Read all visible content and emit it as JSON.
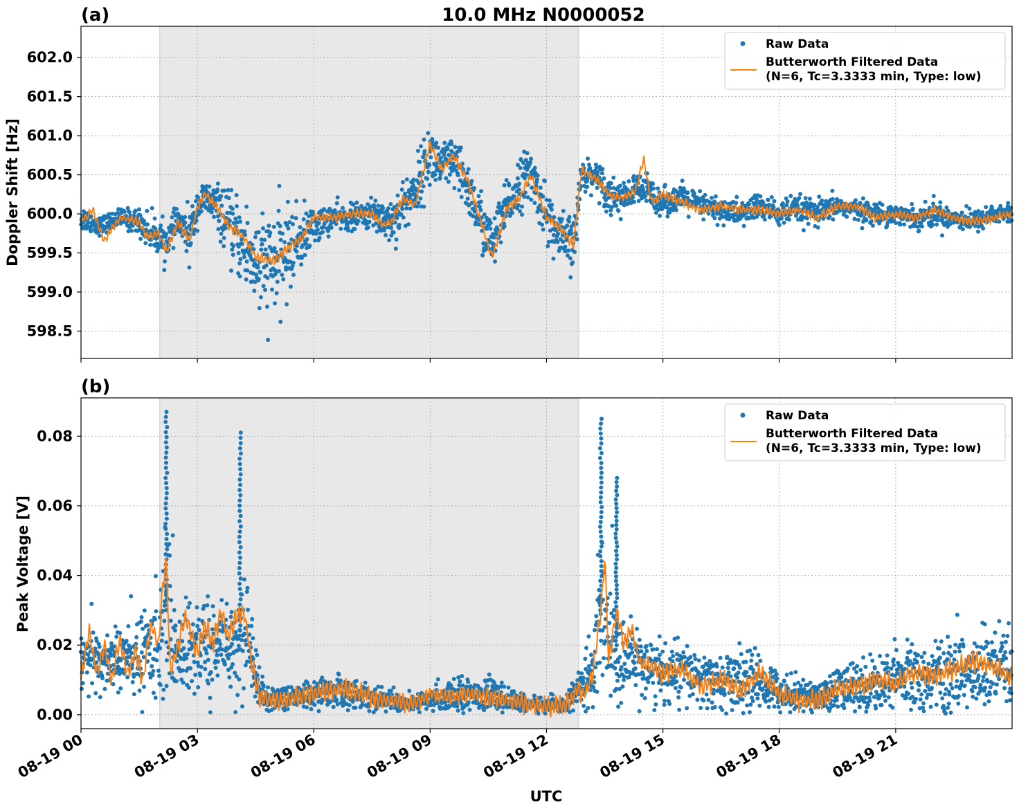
{
  "figure": {
    "title": "10.0 MHz N0000052",
    "xlabel": "UTC"
  },
  "legend": {
    "raw_label": "Raw Data",
    "filtered_label_line1": "Butterworth Filtered Data",
    "filtered_label_line2": "(N=6, Tc=3.3333 min, Type: low)"
  },
  "colors": {
    "raw": "#1f77b4",
    "filtered": "#ff7f0e",
    "shade": "#e8e8e8",
    "grid": "#b0b0b0"
  },
  "chart_data": [
    {
      "panel": "(a)",
      "type": "scatter",
      "ylabel": "Doppler Shift [Hz]",
      "xlim_hours": [
        0,
        24
      ],
      "ylim": [
        598.15,
        602.4
      ],
      "yticks": [
        598.5,
        599.0,
        599.5,
        600.0,
        600.5,
        601.0,
        601.5,
        602.0
      ],
      "ytick_labels": [
        "598.5",
        "599.0",
        "599.5",
        "600.0",
        "600.5",
        "601.0",
        "601.5",
        "602.0"
      ],
      "xticks_hours": [
        0,
        3,
        6,
        9,
        12,
        15,
        18,
        21
      ],
      "shaded_interval_hours": [
        2.03,
        12.83
      ],
      "grid": true,
      "legend_position": "upper right",
      "series": [
        {
          "name": "Raw Data",
          "style": "points",
          "x_hours": [
            0,
            0.5,
            1.0,
            1.5,
            1.7,
            2.0,
            2.2,
            2.5,
            2.8,
            3.0,
            3.2,
            3.5,
            3.8,
            4.2,
            4.6,
            5.0,
            5.3,
            5.7,
            6.0,
            6.5,
            7.0,
            7.5,
            7.8,
            8.0,
            8.3,
            8.6,
            9.0,
            9.3,
            9.6,
            10.0,
            10.3,
            10.6,
            11.0,
            11.3,
            11.6,
            12.0,
            12.3,
            12.7,
            12.9,
            13.3,
            13.6,
            14.0,
            14.3,
            14.6,
            15.0,
            15.5,
            16.0,
            16.5,
            17.0,
            17.5,
            18.0,
            18.5,
            19.0,
            19.5,
            20.0,
            20.5,
            21.0,
            21.5,
            22.0,
            22.5,
            23.0,
            23.5,
            24.0
          ],
          "y_center": [
            599.95,
            599.85,
            599.95,
            599.9,
            599.8,
            599.7,
            599.65,
            599.9,
            599.7,
            600.1,
            600.2,
            600.1,
            599.85,
            599.6,
            599.3,
            599.35,
            599.5,
            599.7,
            599.85,
            599.95,
            599.95,
            600.0,
            599.95,
            599.9,
            600.1,
            600.3,
            600.75,
            600.6,
            600.65,
            600.3,
            599.9,
            599.6,
            600.1,
            600.4,
            600.5,
            600.0,
            599.7,
            599.6,
            600.5,
            600.5,
            600.25,
            600.2,
            600.3,
            600.3,
            600.15,
            600.2,
            600.1,
            600.05,
            600.0,
            600.1,
            600.0,
            600.05,
            600.0,
            600.1,
            600.05,
            600.0,
            600.0,
            599.95,
            600.0,
            599.95,
            599.9,
            600.0,
            600.0
          ],
          "y_spread": [
            0.15,
            0.1,
            0.1,
            0.15,
            0.2,
            0.2,
            0.2,
            0.15,
            0.3,
            0.2,
            0.2,
            0.25,
            0.35,
            0.5,
            0.6,
            0.6,
            0.5,
            0.35,
            0.2,
            0.15,
            0.15,
            0.15,
            0.3,
            0.25,
            0.3,
            0.3,
            0.35,
            0.3,
            0.3,
            0.3,
            0.35,
            0.3,
            0.3,
            0.3,
            0.3,
            0.3,
            0.3,
            0.3,
            0.2,
            0.15,
            0.25,
            0.15,
            0.2,
            0.2,
            0.15,
            0.15,
            0.15,
            0.15,
            0.15,
            0.15,
            0.15,
            0.15,
            0.15,
            0.12,
            0.12,
            0.12,
            0.12,
            0.12,
            0.15,
            0.12,
            0.12,
            0.12,
            0.12
          ]
        },
        {
          "name": "Butterworth Filtered Data (N=6, Tc=3.3333 min, Type: low)",
          "style": "line",
          "x_hours": [
            0,
            0.3,
            0.6,
            1.0,
            1.5,
            1.7,
            2.0,
            2.2,
            2.5,
            2.8,
            3.0,
            3.2,
            3.5,
            3.8,
            4.2,
            4.5,
            5.0,
            5.3,
            5.7,
            6.0,
            6.5,
            7.0,
            7.5,
            7.8,
            8.0,
            8.3,
            8.6,
            9.0,
            9.3,
            9.6,
            10.0,
            10.3,
            10.6,
            11.0,
            11.3,
            11.6,
            12.0,
            12.3,
            12.7,
            12.9,
            13.3,
            13.6,
            14.0,
            14.3,
            14.5,
            14.7,
            15.0,
            15.5,
            16.0,
            16.5,
            17.0,
            17.5,
            18.0,
            18.5,
            19.0,
            19.5,
            20.0,
            20.5,
            21.0,
            21.5,
            22.0,
            22.5,
            23.0,
            23.5,
            24.0
          ],
          "y": [
            599.9,
            600.05,
            599.65,
            599.95,
            599.9,
            599.7,
            599.75,
            599.5,
            599.9,
            599.65,
            600.1,
            600.25,
            600.1,
            599.85,
            599.7,
            599.45,
            599.4,
            599.55,
            599.7,
            599.95,
            599.95,
            600.0,
            600.0,
            599.85,
            599.9,
            600.2,
            600.1,
            600.9,
            600.55,
            600.75,
            600.4,
            599.9,
            599.45,
            600.1,
            600.2,
            600.5,
            599.95,
            599.85,
            599.6,
            600.55,
            600.45,
            600.25,
            600.2,
            600.3,
            600.7,
            600.15,
            600.25,
            600.15,
            600.05,
            600.1,
            600.05,
            600.05,
            600.0,
            600.05,
            599.95,
            600.1,
            600.1,
            599.95,
            600.0,
            599.95,
            600.05,
            599.95,
            599.9,
            599.95,
            600.0
          ]
        }
      ]
    },
    {
      "panel": "(b)",
      "type": "scatter",
      "ylabel": "Peak Voltage [V]",
      "xlim_hours": [
        0,
        24
      ],
      "ylim": [
        -0.004,
        0.091
      ],
      "yticks": [
        0.0,
        0.02,
        0.04,
        0.06,
        0.08
      ],
      "ytick_labels": [
        "0.00",
        "0.02",
        "0.04",
        "0.06",
        "0.08"
      ],
      "xticks_hours": [
        0,
        3,
        6,
        9,
        12,
        15,
        18,
        21
      ],
      "xtick_labels": [
        "08-19 00",
        "08-19 03",
        "08-19 06",
        "08-19 09",
        "08-19 12",
        "08-19 15",
        "08-19 18",
        "08-19 21"
      ],
      "shaded_interval_hours": [
        2.03,
        12.83
      ],
      "grid": true,
      "legend_position": "upper right",
      "series": [
        {
          "name": "Raw Data",
          "style": "points",
          "x_hours": [
            0,
            0.5,
            1.0,
            1.5,
            2.0,
            2.2,
            2.5,
            3.0,
            3.5,
            4.0,
            4.3,
            4.6,
            5.0,
            5.5,
            6.0,
            6.5,
            7.0,
            7.5,
            8.0,
            8.5,
            9.0,
            9.5,
            10.0,
            10.5,
            11.0,
            11.5,
            12.0,
            12.5,
            12.9,
            13.2,
            13.4,
            13.6,
            13.8,
            14.0,
            14.3,
            14.6,
            15.0,
            15.5,
            16.0,
            16.5,
            17.0,
            17.5,
            18.0,
            18.5,
            19.0,
            19.5,
            20.0,
            20.5,
            21.0,
            21.5,
            22.0,
            22.5,
            23.0,
            23.5,
            24.0
          ],
          "y_center": [
            0.016,
            0.015,
            0.016,
            0.016,
            0.022,
            0.03,
            0.018,
            0.02,
            0.02,
            0.022,
            0.024,
            0.006,
            0.005,
            0.005,
            0.006,
            0.007,
            0.006,
            0.005,
            0.004,
            0.003,
            0.004,
            0.006,
            0.006,
            0.006,
            0.004,
            0.003,
            0.003,
            0.003,
            0.008,
            0.012,
            0.03,
            0.018,
            0.02,
            0.016,
            0.015,
            0.014,
            0.012,
            0.012,
            0.01,
            0.009,
            0.01,
            0.009,
            0.007,
            0.006,
            0.005,
            0.007,
            0.008,
            0.009,
            0.01,
            0.011,
            0.011,
            0.012,
            0.012,
            0.013,
            0.012
          ],
          "y_spread": [
            0.009,
            0.009,
            0.008,
            0.01,
            0.015,
            0.02,
            0.012,
            0.013,
            0.012,
            0.015,
            0.016,
            0.004,
            0.003,
            0.003,
            0.004,
            0.004,
            0.004,
            0.003,
            0.003,
            0.002,
            0.003,
            0.004,
            0.004,
            0.004,
            0.003,
            0.002,
            0.002,
            0.002,
            0.006,
            0.01,
            0.025,
            0.015,
            0.015,
            0.01,
            0.009,
            0.009,
            0.008,
            0.008,
            0.007,
            0.007,
            0.008,
            0.007,
            0.005,
            0.004,
            0.004,
            0.006,
            0.007,
            0.007,
            0.008,
            0.009,
            0.009,
            0.01,
            0.01,
            0.011,
            0.01
          ]
        },
        {
          "name": "Butterworth Filtered Data (N=6, Tc=3.3333 min, Type: low)",
          "style": "line",
          "x_hours": [
            0,
            0.2,
            0.4,
            0.6,
            0.8,
            1.0,
            1.2,
            1.4,
            1.6,
            1.8,
            2.0,
            2.1,
            2.2,
            2.3,
            2.5,
            2.7,
            3.0,
            3.2,
            3.4,
            3.6,
            3.8,
            4.0,
            4.2,
            4.4,
            4.6,
            5.0,
            5.5,
            6.0,
            6.5,
            7.0,
            7.5,
            8.0,
            8.5,
            9.0,
            9.5,
            10.0,
            10.5,
            11.0,
            11.5,
            12.0,
            12.5,
            12.8,
            13.0,
            13.2,
            13.4,
            13.5,
            13.6,
            13.8,
            14.0,
            14.2,
            14.4,
            14.6,
            15.0,
            15.5,
            16.0,
            16.5,
            17.0,
            17.5,
            18.0,
            18.5,
            19.0,
            19.5,
            20.0,
            20.5,
            21.0,
            21.5,
            22.0,
            22.5,
            23.0,
            23.5,
            24.0
          ],
          "y": [
            0.01,
            0.024,
            0.012,
            0.02,
            0.01,
            0.022,
            0.012,
            0.018,
            0.01,
            0.026,
            0.02,
            0.036,
            0.045,
            0.012,
            0.02,
            0.028,
            0.018,
            0.026,
            0.02,
            0.03,
            0.022,
            0.028,
            0.03,
            0.015,
            0.005,
            0.004,
            0.005,
            0.006,
            0.007,
            0.007,
            0.005,
            0.004,
            0.003,
            0.006,
            0.005,
            0.006,
            0.005,
            0.004,
            0.003,
            0.002,
            0.003,
            0.007,
            0.006,
            0.012,
            0.03,
            0.046,
            0.015,
            0.03,
            0.02,
            0.025,
            0.015,
            0.014,
            0.012,
            0.013,
            0.008,
            0.01,
            0.007,
            0.012,
            0.006,
            0.004,
            0.004,
            0.007,
            0.008,
            0.01,
            0.009,
            0.012,
            0.011,
            0.013,
            0.015,
            0.014,
            0.01
          ]
        }
      ],
      "spikes": [
        {
          "x_hours": 2.2,
          "y_max": 0.087
        },
        {
          "x_hours": 4.1,
          "y_max": 0.081
        },
        {
          "x_hours": 13.4,
          "y_max": 0.085
        },
        {
          "x_hours": 13.8,
          "y_max": 0.068
        }
      ]
    }
  ]
}
